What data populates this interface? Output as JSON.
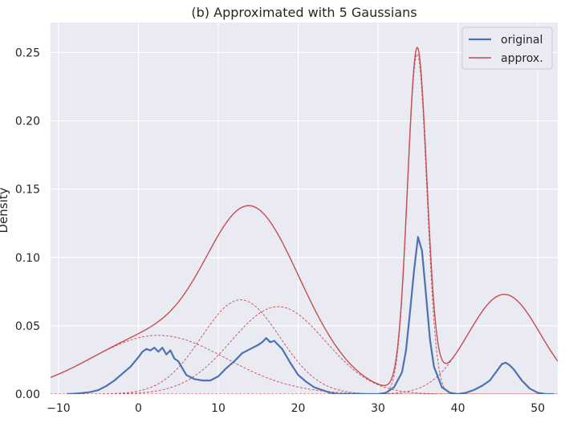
{
  "chart_data": {
    "type": "line",
    "title": "(b) Approximated with 5 Gaussians",
    "xlabel": "",
    "ylabel": "Density",
    "xlim": [
      -11,
      52.5
    ],
    "ylim": [
      0,
      0.272
    ],
    "xticks": [
      -10,
      0,
      10,
      20,
      30,
      40,
      50
    ],
    "yticks": [
      0.0,
      0.05,
      0.1,
      0.15,
      0.2,
      0.25
    ],
    "xtick_labels": [
      "−10",
      "0",
      "10",
      "20",
      "30",
      "40",
      "50"
    ],
    "ytick_labels": [
      "0.00",
      "0.05",
      "0.10",
      "0.15",
      "0.20",
      "0.25"
    ],
    "grid": true,
    "legend_position": "top-right",
    "colors": {
      "original": "#4c72b0",
      "approx": "#c44e52",
      "background": "#eaeaf2",
      "grid": "#ffffff"
    },
    "legend": [
      {
        "label": "original",
        "series": "original"
      },
      {
        "label": "approx.",
        "series": "approx"
      }
    ],
    "components": [
      {
        "mean": 2.5,
        "sd": 8.5,
        "peak": 0.043
      },
      {
        "mean": 12.8,
        "sd": 4.9,
        "peak": 0.069
      },
      {
        "mean": 17.5,
        "sd": 5.9,
        "peak": 0.064
      },
      {
        "mean": 34.9,
        "sd": 1.2,
        "peak": 0.249
      },
      {
        "mean": 45.8,
        "sd": 4.5,
        "peak": 0.073
      }
    ],
    "series": [
      {
        "key": "original",
        "name": "original",
        "x": [
          -9,
          -8,
          -7,
          -6,
          -5,
          -4,
          -3,
          -2,
          -1,
          0,
          0.5,
          1,
          1.5,
          2,
          2.5,
          3,
          3.5,
          4,
          4.5,
          5,
          6,
          7,
          8,
          9,
          10,
          11,
          12,
          13,
          14,
          15,
          15.5,
          16,
          16.5,
          17,
          17.5,
          18,
          19,
          20,
          21,
          22,
          23,
          24,
          25,
          26,
          27,
          28,
          29,
          30,
          31,
          32,
          33,
          33.5,
          34,
          34.5,
          35,
          35.5,
          36,
          36.5,
          37,
          38,
          39,
          40,
          41,
          42,
          43,
          44,
          45,
          45.5,
          46,
          46.5,
          47,
          48,
          49,
          50,
          51,
          52
        ],
        "y": [
          0.0,
          0.0003,
          0.0008,
          0.0015,
          0.003,
          0.006,
          0.01,
          0.015,
          0.02,
          0.027,
          0.031,
          0.033,
          0.032,
          0.034,
          0.031,
          0.034,
          0.029,
          0.032,
          0.026,
          0.024,
          0.014,
          0.011,
          0.01,
          0.01,
          0.013,
          0.019,
          0.024,
          0.03,
          0.033,
          0.036,
          0.038,
          0.041,
          0.038,
          0.039,
          0.036,
          0.033,
          0.023,
          0.014,
          0.009,
          0.005,
          0.003,
          0.001,
          0.0,
          0.0,
          0.0,
          0.0,
          0.0,
          0.0,
          0.001,
          0.005,
          0.016,
          0.032,
          0.06,
          0.09,
          0.115,
          0.105,
          0.073,
          0.04,
          0.02,
          0.005,
          0.001,
          0.0,
          0.001,
          0.003,
          0.006,
          0.01,
          0.018,
          0.022,
          0.023,
          0.021,
          0.018,
          0.01,
          0.004,
          0.001,
          0.0,
          0.0
        ]
      }
    ]
  }
}
